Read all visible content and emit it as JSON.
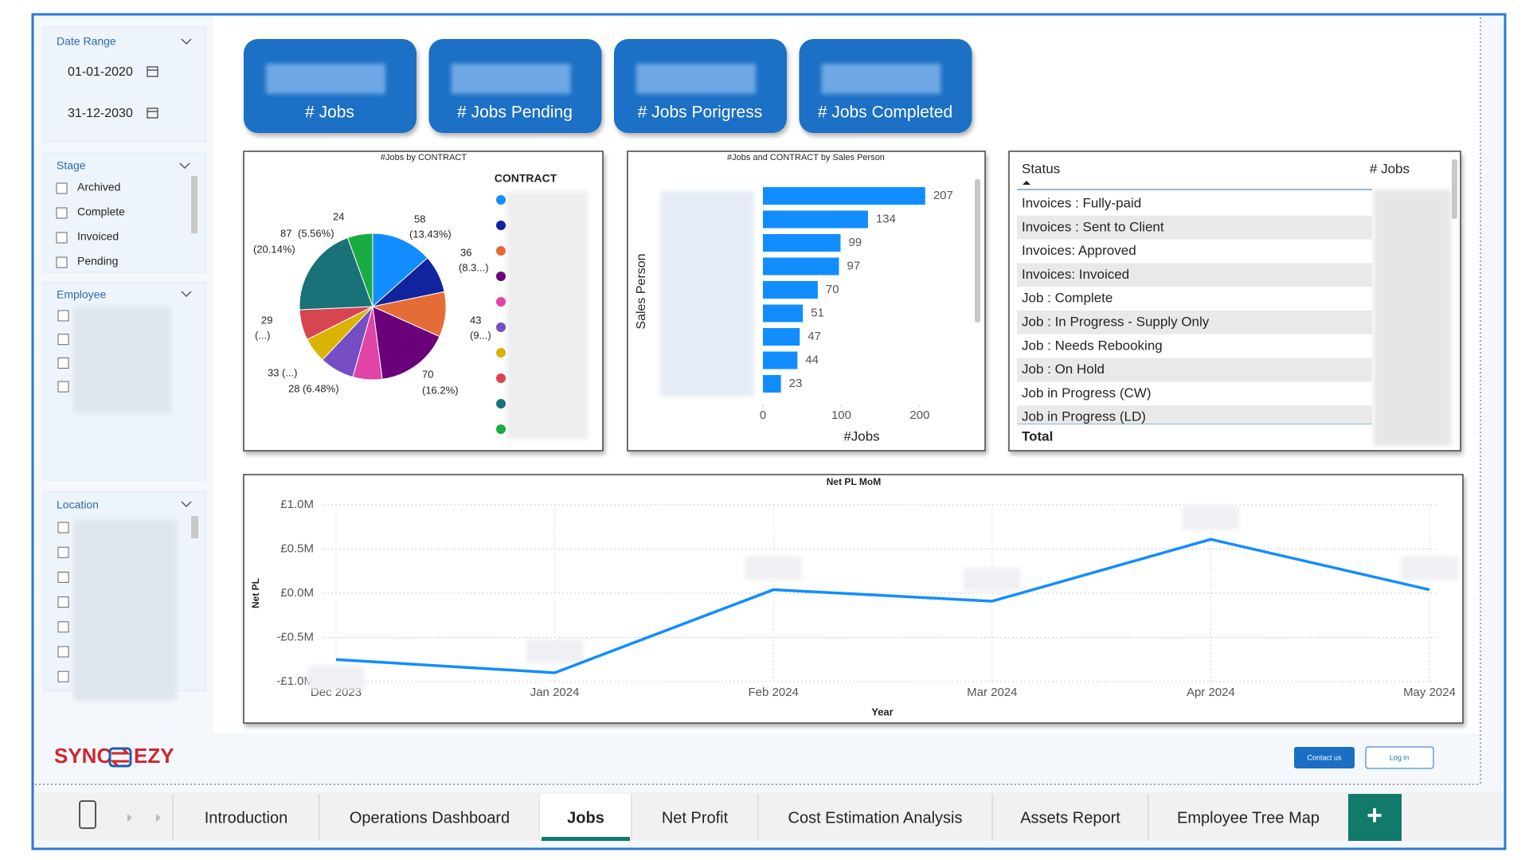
{
  "sidebar": {
    "date_range": {
      "title": "Date Range",
      "start": "01-01-2020",
      "end": "31-12-2030"
    },
    "stage": {
      "title": "Stage",
      "options": [
        "Archived",
        "Complete",
        "Invoiced",
        "Pending"
      ]
    },
    "employee": {
      "title": "Employee"
    },
    "location": {
      "title": "Location"
    }
  },
  "kpi_cards": [
    "# Jobs",
    "# Jobs Pending",
    "# Jobs Porigress",
    "# Jobs Completed"
  ],
  "chart_data": [
    {
      "type": "pie",
      "title": "#Jobs by CONTRACT",
      "legend_title": "CONTRACT",
      "categories": [
        null,
        null,
        null,
        null,
        null,
        null,
        null,
        null,
        null,
        null
      ],
      "values": [
        58,
        36,
        43,
        70,
        28,
        33,
        24,
        29,
        87,
        24
      ],
      "pct_labels": [
        "(13.43%)",
        "(8.3...)",
        "(9...)",
        "(16.2%)",
        "(6.48%)",
        "(...)",
        null,
        "(...)",
        "(20.14%)",
        "(5.56%)"
      ],
      "colors": [
        "#118dff",
        "#12239e",
        "#e66c37",
        "#6b007b",
        "#e044a7",
        "#744ec2",
        "#d9b300",
        "#d64550",
        "#197278",
        "#1aab40"
      ]
    },
    {
      "type": "bar",
      "orientation": "horizontal",
      "title": "#Jobs and CONTRACT by Sales Person",
      "xlabel": "#Jobs",
      "ylabel": "Sales Person",
      "categories": [
        null,
        null,
        null,
        null,
        null,
        null,
        null,
        null,
        null
      ],
      "values": [
        207,
        134,
        99,
        97,
        70,
        51,
        47,
        44,
        23
      ],
      "color": "#118dff",
      "xlim": [
        0,
        260
      ],
      "xticks": [
        0,
        100,
        200
      ]
    },
    {
      "type": "line",
      "title": "Net PL MoM",
      "xlabel": "Year",
      "ylabel": "Net PL",
      "categories": [
        "Dec 2023",
        "Jan 2024",
        "Feb 2024",
        "Mar 2024",
        "Apr 2024",
        "May 2024"
      ],
      "values": [
        -750000,
        -900000,
        40000,
        -90000,
        610000,
        40000
      ],
      "color": "#118dff",
      "ylim": [
        -1000000,
        1000000
      ],
      "yticks": [
        {
          "value": 1000000,
          "label": "£1.0M"
        },
        {
          "value": 500000,
          "label": "£0.5M"
        },
        {
          "value": 0,
          "label": "£0.0M"
        },
        {
          "value": -500000,
          "label": "-£0.5M"
        },
        {
          "value": -1000000,
          "label": "-£1.0M"
        }
      ],
      "grid": true
    }
  ],
  "table": {
    "columns": [
      "Status",
      "# Jobs"
    ],
    "rows": [
      "Invoices : Fully-paid",
      "Invoices : Sent to Client",
      "Invoices: Approved",
      "Invoices: Invoiced",
      "Job : Complete",
      "Job : In Progress - Supply Only",
      "Job : Needs Rebooking",
      "Job : On Hold",
      "Job in Progress (CW)",
      "Job in Progress (LD)"
    ],
    "total": "Total"
  },
  "logo": {
    "left": "SYNC",
    "right": "EZY"
  },
  "buttons": [
    "Contact us",
    "Log in"
  ],
  "tabs": {
    "items": [
      "Introduction",
      "Operations Dashboard",
      "Jobs",
      "Net Profit",
      "Cost Estimation Analysis",
      "Assets Report",
      "Employee Tree Map"
    ],
    "active": 2,
    "add": "+"
  }
}
